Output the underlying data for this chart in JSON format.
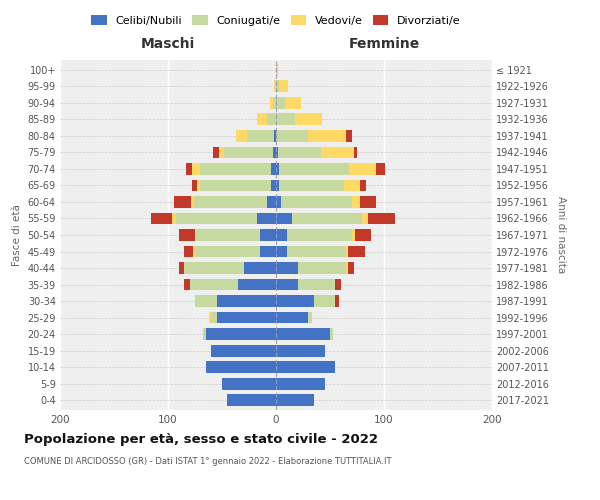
{
  "age_groups": [
    "0-4",
    "5-9",
    "10-14",
    "15-19",
    "20-24",
    "25-29",
    "30-34",
    "35-39",
    "40-44",
    "45-49",
    "50-54",
    "55-59",
    "60-64",
    "65-69",
    "70-74",
    "75-79",
    "80-84",
    "85-89",
    "90-94",
    "95-99",
    "100+"
  ],
  "birth_years": [
    "2017-2021",
    "2012-2016",
    "2007-2011",
    "2002-2006",
    "1997-2001",
    "1992-1996",
    "1987-1991",
    "1982-1986",
    "1977-1981",
    "1972-1976",
    "1967-1971",
    "1962-1966",
    "1957-1961",
    "1952-1956",
    "1947-1951",
    "1942-1946",
    "1937-1941",
    "1932-1936",
    "1927-1931",
    "1922-1926",
    "≤ 1921"
  ],
  "male_celibi": [
    45,
    50,
    65,
    60,
    65,
    55,
    55,
    35,
    30,
    15,
    15,
    18,
    8,
    5,
    5,
    3,
    2,
    0,
    0,
    0,
    0
  ],
  "male_coniugati": [
    0,
    0,
    0,
    0,
    3,
    5,
    20,
    45,
    55,
    60,
    60,
    75,
    68,
    65,
    65,
    45,
    25,
    8,
    3,
    0,
    0
  ],
  "male_vedovi": [
    0,
    0,
    0,
    0,
    0,
    2,
    0,
    0,
    0,
    2,
    0,
    3,
    3,
    3,
    8,
    5,
    10,
    10,
    3,
    2,
    0
  ],
  "male_divorziati": [
    0,
    0,
    0,
    0,
    0,
    0,
    0,
    5,
    5,
    8,
    15,
    20,
    15,
    5,
    5,
    5,
    0,
    0,
    0,
    0,
    0
  ],
  "female_nubili": [
    35,
    45,
    55,
    45,
    50,
    30,
    35,
    20,
    20,
    10,
    10,
    15,
    5,
    3,
    3,
    2,
    0,
    0,
    0,
    0,
    0
  ],
  "female_coniugate": [
    0,
    0,
    0,
    0,
    3,
    3,
    20,
    35,
    45,
    55,
    60,
    65,
    65,
    60,
    65,
    40,
    30,
    18,
    8,
    3,
    0
  ],
  "female_vedove": [
    0,
    0,
    0,
    0,
    0,
    0,
    0,
    0,
    2,
    2,
    3,
    5,
    8,
    15,
    25,
    30,
    35,
    25,
    15,
    8,
    2
  ],
  "female_divorziate": [
    0,
    0,
    0,
    0,
    0,
    0,
    3,
    5,
    5,
    15,
    15,
    25,
    15,
    5,
    8,
    3,
    5,
    0,
    0,
    0,
    0
  ],
  "colors": {
    "celibi": "#4472c4",
    "coniugati": "#c5d9a0",
    "vedovi": "#ffd966",
    "divorziati": "#c0392b"
  },
  "legend_labels": [
    "Celibi/Nubili",
    "Coniugati/e",
    "Vedovi/e",
    "Divorziati/e"
  ],
  "title": "Popolazione per età, sesso e stato civile - 2022",
  "subtitle": "COMUNE DI ARCIDOSSO (GR) - Dati ISTAT 1° gennaio 2022 - Elaborazione TUTTITALIA.IT",
  "label_maschi": "Maschi",
  "label_femmine": "Femmine",
  "label_fasce": "Fasce di età",
  "label_anni": "Anni di nascita",
  "xlim": 200
}
